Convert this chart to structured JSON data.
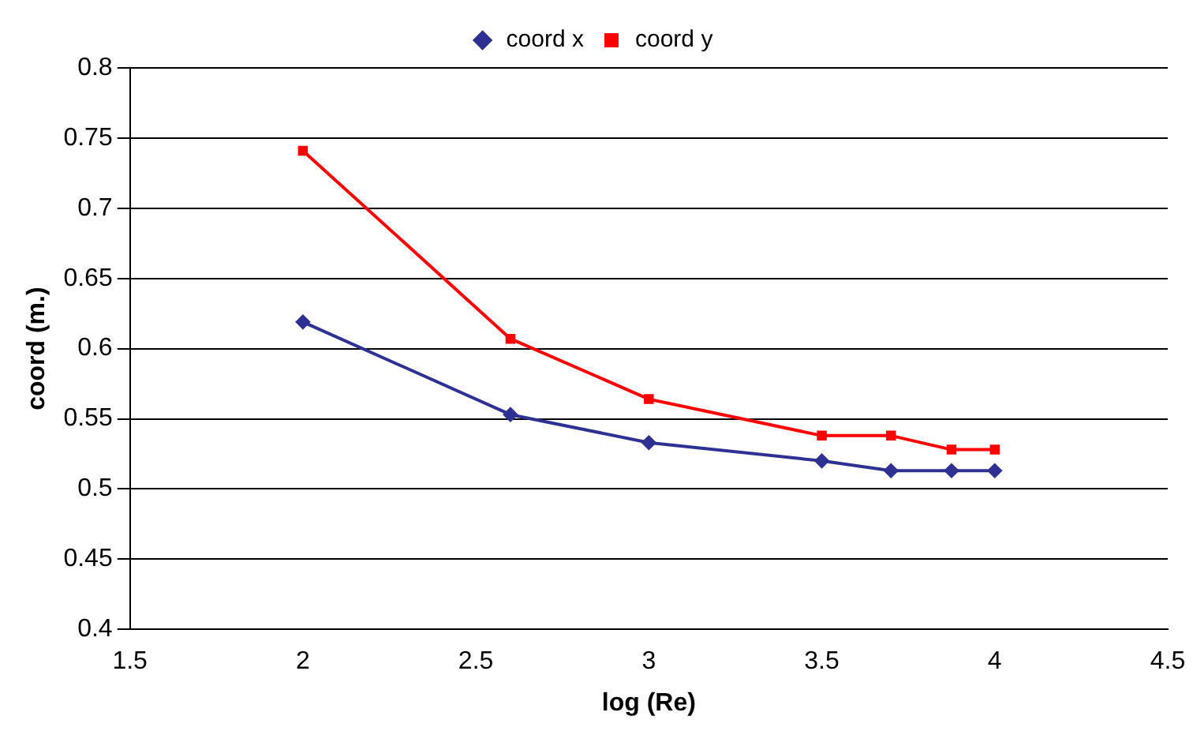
{
  "chart_data": {
    "type": "line",
    "xlabel": "log (Re)",
    "ylabel": "coord (m.)",
    "x": [
      2,
      2.6,
      3,
      3.5,
      3.7,
      3.875,
      4
    ],
    "series": [
      {
        "name": "coord x",
        "color": "#2e3192",
        "marker": "diamond",
        "values": [
          0.619,
          0.553,
          0.533,
          0.52,
          0.513,
          0.513,
          0.513
        ]
      },
      {
        "name": "coord y",
        "color": "#ff0000",
        "marker": "square",
        "values": [
          0.741,
          0.607,
          0.564,
          0.538,
          0.538,
          0.528,
          0.528
        ]
      }
    ],
    "xlim": [
      1.5,
      4.5
    ],
    "xticks": [
      1.5,
      2,
      2.5,
      3,
      3.5,
      4,
      4.5
    ],
    "ylim": [
      0.4,
      0.8
    ],
    "yticks": [
      0.4,
      0.45,
      0.5,
      0.55,
      0.6,
      0.65,
      0.7,
      0.75,
      0.8
    ],
    "grid": "y",
    "legend": "top",
    "line_style": "solid"
  }
}
